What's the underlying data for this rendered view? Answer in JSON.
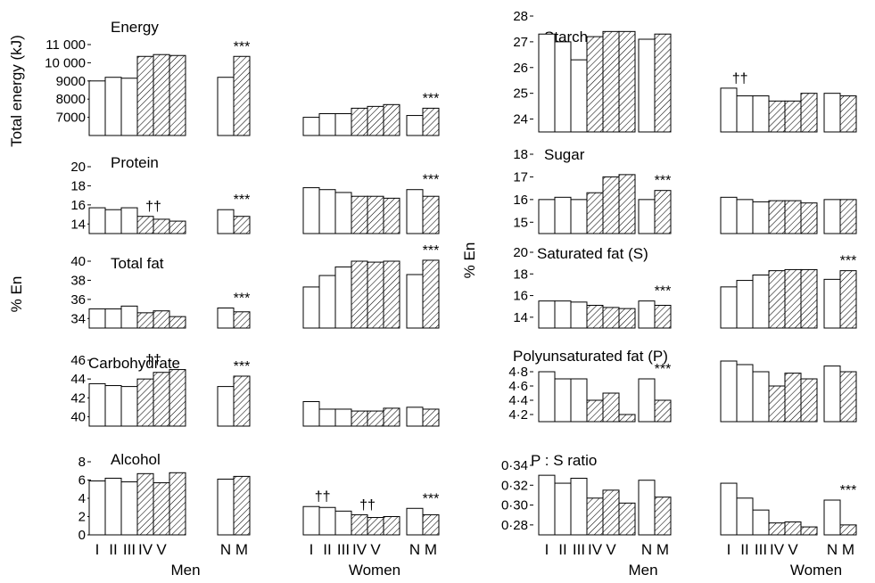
{
  "labels": {
    "y_energy": "Total energy (kJ)",
    "y_left": "% En",
    "y_right": "% En",
    "men_left": "Men",
    "women_left": "Women",
    "men_right": "Men",
    "women_right": "Women"
  },
  "chart_data": [
    {
      "type": "bar",
      "title": "Energy",
      "xlabel": "",
      "ylabel": "Total energy (kJ)",
      "ylim": [
        6000,
        11000
      ],
      "yticks": [
        7000,
        8000,
        9000,
        10000,
        11000
      ],
      "ytick_labels": [
        "7000",
        "8000",
        "9000",
        "10 000",
        "11 000"
      ],
      "x_categories": [
        "I",
        "II",
        "III",
        "IV",
        "V",
        "N",
        "M"
      ],
      "men_quintiles": [
        9000,
        9200,
        9150,
        10350,
        10450,
        10400
      ],
      "men_nm": [
        9200,
        10350
      ],
      "women_quintiles": [
        7000,
        7200,
        7200,
        7500,
        7600,
        7700
      ],
      "women_nm": [
        7100,
        7500
      ],
      "annotations": {
        "men_nm": "***",
        "women_nm": "***"
      }
    },
    {
      "type": "bar",
      "title": "Protein",
      "xlabel": "",
      "ylabel": "% En",
      "ylim": [
        13,
        20
      ],
      "yticks": [
        14,
        16,
        18,
        20
      ],
      "ytick_labels": [
        "14",
        "16",
        "18",
        "20"
      ],
      "x_categories": [
        "I",
        "II",
        "III",
        "IV",
        "V",
        "N",
        "M"
      ],
      "men_quintiles": [
        15.7,
        15.5,
        15.7,
        14.8,
        14.5,
        14.3
      ],
      "men_nm": [
        15.5,
        14.8
      ],
      "women_quintiles": [
        17.8,
        17.6,
        17.3,
        16.9,
        16.9,
        16.7
      ],
      "women_nm": [
        17.6,
        16.9
      ],
      "annotations": {
        "men_quintiles": "††",
        "men_nm": "***",
        "women_nm": "***"
      }
    },
    {
      "type": "bar",
      "title": "Total fat",
      "xlabel": "",
      "ylabel": "% En",
      "ylim": [
        33,
        40
      ],
      "yticks": [
        34,
        36,
        38,
        40
      ],
      "ytick_labels": [
        "34",
        "36",
        "38",
        "40"
      ],
      "x_categories": [
        "I",
        "II",
        "III",
        "IV",
        "V",
        "N",
        "M"
      ],
      "men_quintiles": [
        35.0,
        35.0,
        35.3,
        34.6,
        34.8,
        34.2
      ],
      "men_nm": [
        35.1,
        34.7
      ],
      "women_quintiles": [
        37.3,
        38.5,
        39.4,
        40.0,
        39.9,
        40.0
      ],
      "women_nm": [
        38.6,
        40.1
      ],
      "annotations": {
        "men_nm": "***",
        "women_nm": "***"
      }
    },
    {
      "type": "bar",
      "title": "Carbohydrate",
      "xlabel": "",
      "ylabel": "% En",
      "ylim": [
        39,
        46
      ],
      "yticks": [
        40,
        42,
        44,
        46
      ],
      "ytick_labels": [
        "40",
        "42",
        "44",
        "46"
      ],
      "x_categories": [
        "I",
        "II",
        "III",
        "IV",
        "V",
        "N",
        "M"
      ],
      "men_quintiles": [
        43.5,
        43.3,
        43.2,
        44.0,
        44.7,
        45.0
      ],
      "men_nm": [
        43.2,
        44.3
      ],
      "women_quintiles": [
        41.6,
        40.8,
        40.8,
        40.6,
        40.6,
        40.9
      ],
      "women_nm": [
        41.0,
        40.8
      ],
      "annotations": {
        "men_quintiles": "††",
        "men_nm": "***"
      }
    },
    {
      "type": "bar",
      "title": "Alcohol",
      "xlabel": "",
      "ylabel": "% En",
      "ylim": [
        0,
        8
      ],
      "yticks": [
        0,
        2,
        4,
        6,
        8
      ],
      "ytick_labels": [
        "0",
        "2",
        "4",
        "6",
        "8"
      ],
      "x_categories": [
        "I",
        "II",
        "III",
        "IV",
        "V",
        "N",
        "M"
      ],
      "men_quintiles": [
        5.9,
        6.2,
        5.8,
        6.7,
        5.7,
        6.8
      ],
      "men_nm": [
        6.1,
        6.4
      ],
      "women_quintiles": [
        3.1,
        3.0,
        2.6,
        2.2,
        1.9,
        2.0
      ],
      "women_nm": [
        2.9,
        2.2
      ],
      "annotations": {
        "women_quintiles_left": "††",
        "women_quintiles_right": "††",
        "women_nm": "***"
      }
    },
    {
      "type": "bar",
      "title": "Starch",
      "xlabel": "",
      "ylabel": "% En",
      "ylim": [
        23.5,
        28
      ],
      "yticks": [
        24,
        25,
        26,
        27,
        28
      ],
      "ytick_labels": [
        "24",
        "25",
        "26",
        "27",
        "28"
      ],
      "x_categories": [
        "I",
        "II",
        "III",
        "IV",
        "V",
        "N",
        "M"
      ],
      "men_quintiles": [
        27.3,
        27.0,
        26.3,
        27.2,
        27.4,
        27.4
      ],
      "men_nm": [
        27.1,
        27.3
      ],
      "women_quintiles": [
        25.2,
        24.9,
        24.9,
        24.7,
        24.7,
        25.0
      ],
      "women_nm": [
        25.0,
        24.9
      ],
      "annotations": {
        "women_quintiles": "††"
      }
    },
    {
      "type": "bar",
      "title": "Sugar",
      "xlabel": "",
      "ylabel": "% En",
      "ylim": [
        14.5,
        18
      ],
      "yticks": [
        15,
        16,
        17,
        18
      ],
      "ytick_labels": [
        "15",
        "16",
        "17",
        "18"
      ],
      "x_categories": [
        "I",
        "II",
        "III",
        "IV",
        "V",
        "N",
        "M"
      ],
      "men_quintiles": [
        16.0,
        16.1,
        16.0,
        16.3,
        17.0,
        17.1
      ],
      "men_nm": [
        16.0,
        16.4
      ],
      "women_quintiles": [
        16.1,
        16.0,
        15.9,
        15.95,
        15.95,
        15.85
      ],
      "women_nm": [
        16.0,
        16.0
      ],
      "annotations": {
        "men_nm": "***"
      }
    },
    {
      "type": "bar",
      "title": "Saturated fat (S)",
      "xlabel": "",
      "ylabel": "% En",
      "ylim": [
        13,
        20
      ],
      "yticks": [
        14,
        16,
        18,
        20
      ],
      "ytick_labels": [
        "14",
        "16",
        "18",
        "20"
      ],
      "x_categories": [
        "I",
        "II",
        "III",
        "IV",
        "V",
        "N",
        "M"
      ],
      "men_quintiles": [
        15.5,
        15.5,
        15.4,
        15.1,
        14.9,
        14.8
      ],
      "men_nm": [
        15.5,
        15.1
      ],
      "women_quintiles": [
        16.8,
        17.4,
        17.9,
        18.3,
        18.4,
        18.4
      ],
      "women_nm": [
        17.5,
        18.3
      ],
      "annotations": {
        "men_nm": "***",
        "women_nm": "***"
      }
    },
    {
      "type": "bar",
      "title": "Polyunsaturated fat (P)",
      "xlabel": "",
      "ylabel": "% En",
      "ylim": [
        4.1,
        4.95
      ],
      "yticks": [
        4.2,
        4.4,
        4.6,
        4.8
      ],
      "ytick_labels": [
        "4·2",
        "4·4",
        "4·6",
        "4·8"
      ],
      "x_categories": [
        "I",
        "II",
        "III",
        "IV",
        "V",
        "N",
        "M"
      ],
      "men_quintiles": [
        4.8,
        4.7,
        4.7,
        4.4,
        4.5,
        4.2
      ],
      "men_nm": [
        4.7,
        4.4
      ],
      "women_quintiles": [
        4.95,
        4.9,
        4.8,
        4.6,
        4.78,
        4.7
      ],
      "women_nm": [
        4.88,
        4.8
      ],
      "annotations": {
        "men_nm": "***"
      }
    },
    {
      "type": "bar",
      "title": "P : S ratio",
      "xlabel": "",
      "ylabel": "",
      "ylim": [
        0.27,
        0.34
      ],
      "yticks": [
        0.28,
        0.3,
        0.32,
        0.34
      ],
      "ytick_labels": [
        "0·28",
        "0·30",
        "0·32",
        "0·34"
      ],
      "x_categories": [
        "I",
        "II",
        "III",
        "IV",
        "V",
        "N",
        "M"
      ],
      "men_quintiles": [
        0.33,
        0.322,
        0.327,
        0.307,
        0.315,
        0.302
      ],
      "men_nm": [
        0.325,
        0.308
      ],
      "women_quintiles": [
        0.322,
        0.307,
        0.295,
        0.282,
        0.283,
        0.278
      ],
      "women_nm": [
        0.305,
        0.28
      ],
      "annotations": {
        "women_nm": "***"
      }
    }
  ]
}
